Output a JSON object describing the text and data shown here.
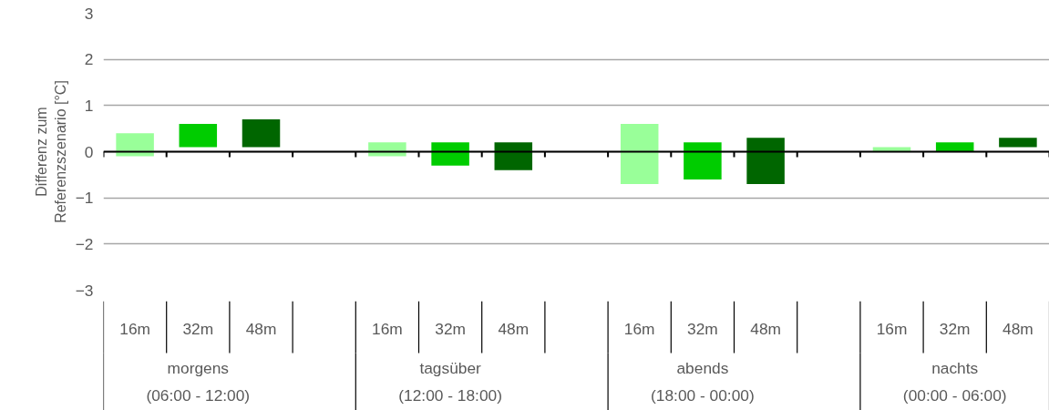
{
  "chart_data": {
    "type": "bar",
    "ylabel": "Differenz zum\nReferenzszenario [°C]",
    "categories": [
      "16m",
      "32m",
      "48m",
      null,
      "16m",
      "32m",
      "48m",
      null,
      "16m",
      "32m",
      "48m",
      null,
      "16m",
      "32m",
      "48m"
    ],
    "base": [
      -0.1,
      0.1,
      0.1,
      null,
      -0.1,
      -0.3,
      -0.4,
      null,
      -0.7,
      -0.6,
      -0.7,
      null,
      0,
      0,
      0.1
    ],
    "values": [
      0.5,
      0.5,
      0.6,
      null,
      0.3,
      0.5,
      0.6,
      null,
      1.3,
      0.8,
      1.0,
      null,
      0.1,
      0.2,
      0.2
    ],
    "colors": [
      "#99ff99",
      "#00cc00",
      "#006600",
      null,
      "#99ff99",
      "#00cc00",
      "#006600",
      null,
      "#99ff99",
      "#00cc00",
      "#006600",
      null,
      "#99ff99",
      "#00cc00",
      "#006600"
    ],
    "ylim": [
      -3,
      3
    ],
    "yticks": [
      -3,
      -2,
      -1,
      0,
      1,
      2,
      3
    ],
    "grid": "y",
    "annotations": [
      "morgens\n(06:00 - 12:00)",
      "tagsüber\n(12:00 - 18:00)",
      "abends\n(18:00 - 00:00)",
      "nachts\n(00:00 - 06:00)"
    ]
  }
}
